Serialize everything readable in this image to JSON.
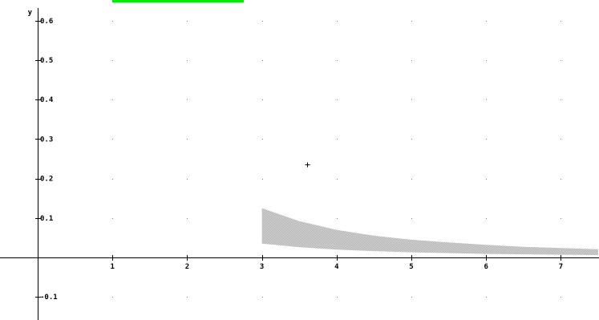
{
  "colors": {
    "background": "#ffffff",
    "axis": "#000000",
    "grid_dot": "#808080",
    "shaded_region": "#c8c8c8",
    "selection_bar": "#00ee00",
    "point_marker": "#000000"
  },
  "chart_data": {
    "type": "area",
    "title": "",
    "xlabel": "",
    "ylabel": "y",
    "xlim": [
      -0.4,
      7.5
    ],
    "ylim": [
      -0.16,
      0.64
    ],
    "grid": "dotted",
    "x_ticks": [
      1,
      2,
      3,
      4,
      5,
      6,
      7
    ],
    "x_tick_labels": [
      "1",
      "2",
      "3",
      "4",
      "5",
      "6",
      "7"
    ],
    "y_ticks": [
      0.6,
      0.5,
      0.4,
      0.3,
      0.2,
      0.1,
      -0.1
    ],
    "y_tick_labels": [
      "0.6",
      "0.5",
      "0.4",
      "0.3",
      "0.2",
      "0.1",
      "-0.1"
    ],
    "shaded_region": {
      "x": [
        3,
        3.5,
        4,
        4.5,
        5,
        5.5,
        6,
        6.5,
        7,
        7.5
      ],
      "upper": [
        0.125,
        0.092,
        0.07,
        0.055,
        0.045,
        0.038,
        0.032,
        0.027,
        0.024,
        0.021
      ],
      "lower": [
        0.035,
        0.026,
        0.02,
        0.016,
        0.013,
        0.011,
        0.009,
        0.008,
        0.007,
        0.006
      ]
    },
    "point_marker": {
      "x": 3.6,
      "y": 0.235,
      "symbol": "+"
    }
  }
}
